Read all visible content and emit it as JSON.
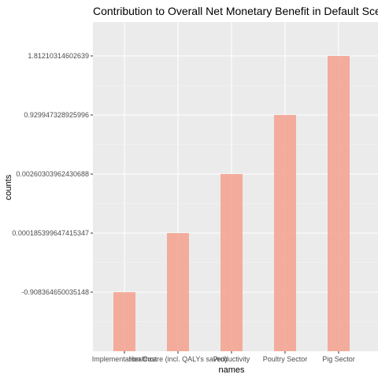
{
  "chart_data": {
    "type": "bar",
    "title": "Contribution to Overall Net Monetary Benefit in Default Scenario",
    "xlabel": "names",
    "ylabel": "counts",
    "categories": [
      "Implementation Cost",
      "Healthcare (incl. QALYs saved)",
      "Productivity",
      "Poultry Sector",
      "Pig Sector"
    ],
    "y_axis_type": "categorical (ordered, discrete)",
    "y_tick_labels": [
      "-0.908364650035148",
      "0.000185399647415347",
      "0.00260303962430688",
      "0.929947328925996",
      "1.81210314602639"
    ],
    "values": [
      -0.908364650035148,
      0.000185399647415347,
      0.00260303962430688,
      0.929947328925996,
      1.81210314602639
    ],
    "bar_color": "#f4a593",
    "panel_background": "#ebebeb",
    "grid": true,
    "legend": "none"
  }
}
